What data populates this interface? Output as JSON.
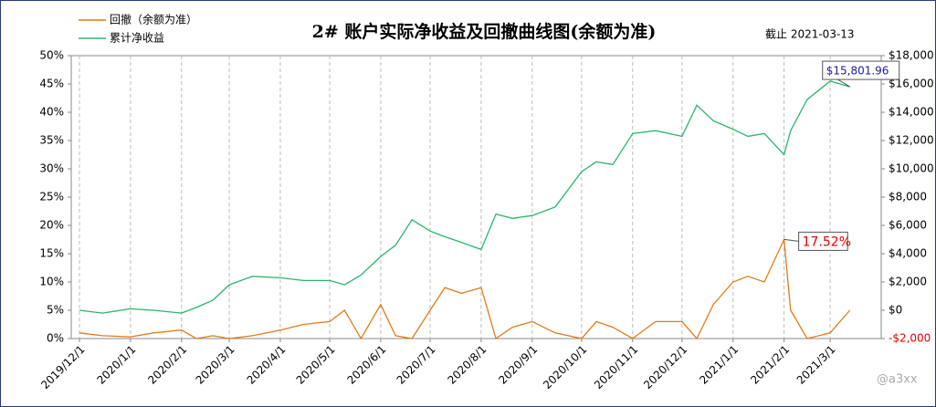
{
  "chart_data": {
    "type": "line",
    "title": "2# 账户实际净收益及回撤曲线图(余额为准)",
    "subtitle": "截止 2021-03-13",
    "watermark": "@a3xx",
    "legend": "top-left",
    "grid": true,
    "x": [
      "2019/12/1",
      "2019/12/15",
      "2020/1/1",
      "2020/1/15",
      "2020/2/1",
      "2020/2/10",
      "2020/2/20",
      "2020/3/1",
      "2020/3/15",
      "2020/4/1",
      "2020/4/15",
      "2020/5/1",
      "2020/5/10",
      "2020/5/20",
      "2020/6/1",
      "2020/6/10",
      "2020/6/20",
      "2020/7/1",
      "2020/7/10",
      "2020/7/20",
      "2020/8/1",
      "2020/8/10",
      "2020/8/20",
      "2020/9/1",
      "2020/9/15",
      "2020/10/1",
      "2020/10/10",
      "2020/10/20",
      "2020/11/1",
      "2020/11/15",
      "2020/12/1",
      "2020/12/10",
      "2020/12/20",
      "2021/1/1",
      "2021/1/10",
      "2021/1/20",
      "2021/2/1",
      "2021/2/5",
      "2021/2/15",
      "2021/3/1",
      "2021/3/13"
    ],
    "xlim": [
      "2019/11/26",
      "2021/4/1"
    ],
    "xticks": [
      "2019/12/1",
      "2020/1/1",
      "2020/2/1",
      "2020/3/1",
      "2020/4/1",
      "2020/5/1",
      "2020/6/1",
      "2020/7/1",
      "2020/8/1",
      "2020/9/1",
      "2020/10/1",
      "2020/11/1",
      "2020/12/1",
      "2021/1/1",
      "2021/2/1",
      "2021/3/1"
    ],
    "ylim": [
      0,
      50
    ],
    "yticks": [
      {
        "value": 0,
        "label": "0%"
      },
      {
        "value": 5,
        "label": "5%"
      },
      {
        "value": 10,
        "label": "10%"
      },
      {
        "value": 15,
        "label": "15%"
      },
      {
        "value": 20,
        "label": "20%"
      },
      {
        "value": 25,
        "label": "25%"
      },
      {
        "value": 30,
        "label": "30%"
      },
      {
        "value": 35,
        "label": "35%"
      },
      {
        "value": 40,
        "label": "40%"
      },
      {
        "value": 45,
        "label": "45%"
      },
      {
        "value": 50,
        "label": "50%"
      }
    ],
    "y2lim": [
      -2000,
      18000
    ],
    "y2ticks": [
      {
        "value": -2000,
        "label": "-$2,000"
      },
      {
        "value": 0,
        "label": "$0"
      },
      {
        "value": 2000,
        "label": "$2,000"
      },
      {
        "value": 4000,
        "label": "$4,000"
      },
      {
        "value": 6000,
        "label": "$6,000"
      },
      {
        "value": 8000,
        "label": "$8,000"
      },
      {
        "value": 10000,
        "label": "$10,000"
      },
      {
        "value": 12000,
        "label": "$12,000"
      },
      {
        "value": 14000,
        "label": "$14,000"
      },
      {
        "value": 16000,
        "label": "$16,000"
      },
      {
        "value": 18000,
        "label": "$18,000"
      }
    ],
    "series": [
      {
        "name": "回撤（余额为准）",
        "color": "#e07b1a",
        "axis": "y",
        "values": [
          1,
          0.5,
          0.3,
          1,
          1.5,
          0,
          0.5,
          0,
          0.5,
          1.5,
          2.5,
          3,
          5,
          0,
          6,
          0.5,
          0,
          5,
          9,
          8,
          9,
          0,
          2,
          3,
          1,
          0,
          3,
          2,
          0,
          3,
          3,
          0,
          6,
          10,
          11,
          10,
          17.52,
          5,
          0,
          1,
          5
        ],
        "value_labels": [
          null,
          null,
          null,
          null,
          null,
          null,
          null,
          null,
          null,
          null,
          null,
          null,
          null,
          null,
          null,
          null,
          null,
          null,
          null,
          null,
          null,
          null,
          null,
          null,
          null,
          null,
          null,
          null,
          null,
          null,
          null,
          null,
          null,
          null,
          null,
          null,
          "17.52%",
          null,
          null,
          null,
          null
        ],
        "label_color": "#e00000"
      },
      {
        "name": "累计净收益",
        "color": "#2db36b",
        "axis": "y2",
        "values": [
          0,
          -200,
          100,
          0,
          -200,
          200,
          700,
          1800,
          2400,
          2300,
          2100,
          2100,
          1800,
          2500,
          3800,
          4600,
          6400,
          5600,
          5200,
          4800,
          4300,
          6800,
          6500,
          6700,
          7300,
          9800,
          10500,
          10300,
          12500,
          12700,
          12300,
          14500,
          13400,
          12800,
          12300,
          12500,
          11000,
          12700,
          14900,
          16200,
          15801.96
        ],
        "value_labels": [
          null,
          null,
          null,
          null,
          null,
          null,
          null,
          null,
          null,
          null,
          null,
          null,
          null,
          null,
          null,
          null,
          null,
          null,
          null,
          null,
          null,
          null,
          null,
          null,
          null,
          null,
          null,
          null,
          null,
          null,
          null,
          null,
          null,
          null,
          null,
          null,
          null,
          null,
          null,
          null,
          "$15,801.96"
        ],
        "label_color": "#1a1aa0"
      }
    ]
  }
}
